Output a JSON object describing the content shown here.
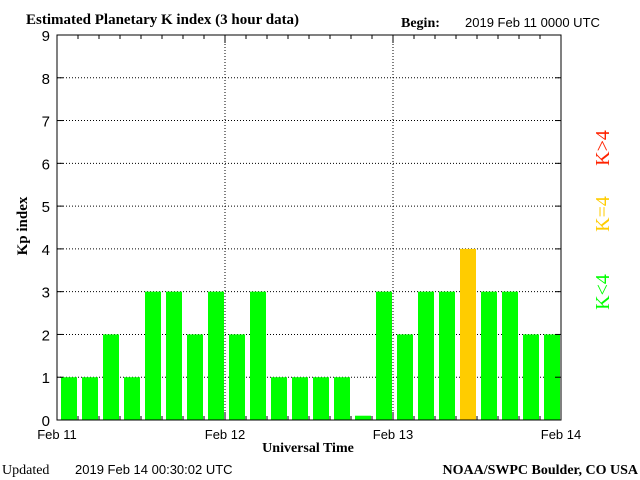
{
  "chart_data": {
    "type": "bar",
    "title": "Estimated Planetary K index (3 hour data)",
    "begin_label": "Begin:",
    "begin_value": "2019 Feb 11 0000 UTC",
    "ylabel": "Kp index",
    "xlabel": "Universal Time",
    "ylim": [
      0,
      9
    ],
    "yticks": [
      "0",
      "1",
      "2",
      "3",
      "4",
      "5",
      "6",
      "7",
      "8",
      "9"
    ],
    "day_labels": [
      "Feb 11",
      "Feb 12",
      "Feb 13",
      "Feb 14"
    ],
    "values": [
      1,
      1,
      2,
      1,
      3,
      3,
      2,
      3,
      2,
      3,
      1,
      1,
      1,
      1,
      0.1,
      3,
      2,
      3,
      3,
      4,
      3,
      3,
      2,
      2
    ],
    "grid": true,
    "legend": [
      {
        "label": "K<4",
        "color": "#00ff00"
      },
      {
        "label": "K=4",
        "color": "#ffcc00"
      },
      {
        "label": "K>4",
        "color": "#ff2200"
      }
    ]
  },
  "footer": {
    "updated_label": "Updated",
    "updated_value": "2019 Feb 14 00:30:02 UTC",
    "credit": "NOAA/SWPC Boulder, CO USA"
  }
}
